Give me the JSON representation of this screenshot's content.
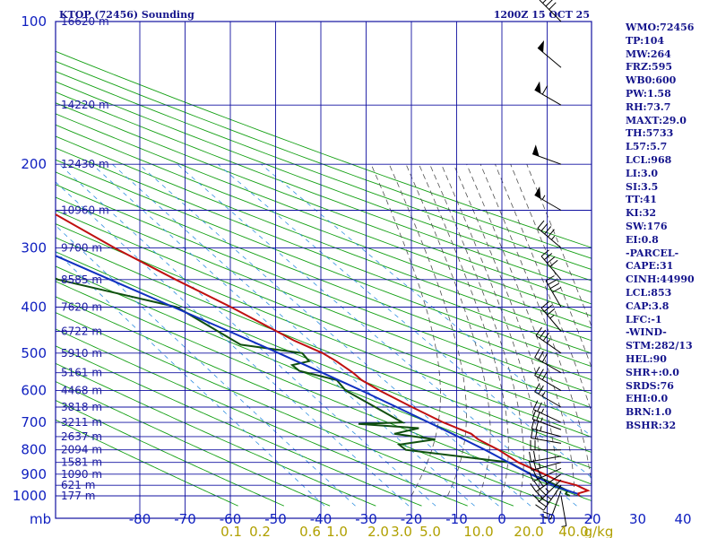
{
  "title_left": "KTOP (72456) Sounding",
  "title_right": "1200Z 15 OCT 25",
  "colors": {
    "grid": "#1010a0",
    "dry_adiabat": "#14a014",
    "moist_adiabat": "#505050",
    "mixing_ratio": "#3090e0",
    "temperature": "#c01010",
    "dewpoint": "#105010",
    "parcel": "#1030c0",
    "text": "#14148c",
    "mixing_label": "#b0a000"
  },
  "chart_data": {
    "type": "skew-t",
    "title": "KTOP (72456) Sounding",
    "valid_time": "1200Z 15 OCT 25",
    "ylabel": "mb",
    "xlabel": "Temperature (°C)",
    "pressure_ticks": [
      100,
      200,
      300,
      400,
      500,
      600,
      700,
      800,
      900,
      1000
    ],
    "pressure_levels": [
      100,
      150,
      200,
      250,
      300,
      350,
      400,
      450,
      500,
      550,
      600,
      650,
      700,
      750,
      800,
      850,
      900,
      950,
      1000
    ],
    "temperature_ticks": [
      -80,
      -70,
      -60,
      -50,
      -40,
      -30,
      -20,
      -10,
      0,
      10,
      20,
      30,
      40
    ],
    "plim_mb": [
      100,
      1050
    ],
    "xlim_c": [
      -82,
      46
    ],
    "height_labels": [
      {
        "p": 100,
        "label": "16620 m"
      },
      {
        "p": 150,
        "label": "14220 m"
      },
      {
        "p": 200,
        "label": "12430 m"
      },
      {
        "p": 250,
        "label": "10960 m"
      },
      {
        "p": 300,
        "label": "9700 m"
      },
      {
        "p": 350,
        "label": "8585 m"
      },
      {
        "p": 400,
        "label": "7620 m"
      },
      {
        "p": 450,
        "label": "6722 m"
      },
      {
        "p": 500,
        "label": "5910 m"
      },
      {
        "p": 550,
        "label": "5161 m"
      },
      {
        "p": 600,
        "label": "4468 m"
      },
      {
        "p": 650,
        "label": "3818 m"
      },
      {
        "p": 700,
        "label": "3211 m"
      },
      {
        "p": 750,
        "label": "2637 m"
      },
      {
        "p": 800,
        "label": "2094 m"
      },
      {
        "p": 850,
        "label": "1581 m"
      },
      {
        "p": 900,
        "label": "1090 m"
      },
      {
        "p": 950,
        "label": "621 m"
      },
      {
        "p": 1000,
        "label": "177 m"
      }
    ],
    "mixing_ratio_labels": [
      "0.1",
      "0.2",
      "0.6",
      "1.0",
      "2.0",
      "3.0",
      "5.0",
      "10.0",
      "20.0",
      "40.0"
    ],
    "mixing_ratio_unit": "g/kg",
    "mixing_ratio_values": [
      0.1,
      0.2,
      0.6,
      1.0,
      2.0,
      3.0,
      5.0,
      10.0,
      20.0,
      40.0
    ],
    "dry_adiabats_k": [
      210,
      220,
      230,
      240,
      250,
      260,
      270,
      280,
      290,
      300,
      310,
      320,
      330,
      340,
      350,
      360,
      370,
      380,
      390,
      400,
      410,
      420,
      430,
      440,
      450,
      460,
      470,
      480
    ],
    "moist_adiabats_c": [
      -20,
      -12,
      -5,
      0,
      4,
      8,
      12,
      16,
      20,
      24,
      28,
      32
    ],
    "series": [
      {
        "name": "Temperature",
        "points": [
          [
            1000,
            17.2
          ],
          [
            990,
            17.0
          ],
          [
            975,
            20.0
          ],
          [
            950,
            18.5
          ],
          [
            925,
            15.0
          ],
          [
            900,
            13.5
          ],
          [
            850,
            10.0
          ],
          [
            800,
            8.0
          ],
          [
            760,
            5.5
          ],
          [
            740,
            5.0
          ],
          [
            700,
            1.0
          ],
          [
            650,
            -3.0
          ],
          [
            600,
            -7.0
          ],
          [
            570,
            -9.0
          ],
          [
            550,
            -9.5
          ],
          [
            520,
            -11.0
          ],
          [
            500,
            -12.5
          ],
          [
            470,
            -16.5
          ],
          [
            450,
            -18.5
          ],
          [
            400,
            -24.0
          ],
          [
            350,
            -31.0
          ],
          [
            300,
            -38.5
          ],
          [
            250,
            -46.0
          ],
          [
            200,
            -53.0
          ],
          [
            170,
            -56.0
          ],
          [
            150,
            -57.5
          ],
          [
            100,
            -67.0
          ]
        ]
      },
      {
        "name": "Dewpoint",
        "points": [
          [
            1000,
            15.0
          ],
          [
            990,
            14.5
          ],
          [
            975,
            15.5
          ],
          [
            950,
            14.0
          ],
          [
            925,
            12.5
          ],
          [
            900,
            10.5
          ],
          [
            850,
            8.0
          ],
          [
            800,
            -12.5
          ],
          [
            780,
            -13.0
          ],
          [
            760,
            -4.0
          ],
          [
            740,
            -12.0
          ],
          [
            720,
            -5.5
          ],
          [
            705,
            -18.0
          ],
          [
            700,
            -8.0
          ],
          [
            660,
            -10.5
          ],
          [
            600,
            -14.5
          ],
          [
            570,
            -14.5
          ],
          [
            545,
            -21.0
          ],
          [
            530,
            -21.5
          ],
          [
            520,
            -17.0
          ],
          [
            500,
            -17.0
          ],
          [
            480,
            -29.0
          ],
          [
            400,
            -36.0
          ],
          [
            350,
            -57.0
          ],
          [
            300,
            -67.0
          ],
          [
            250,
            -74.0
          ],
          [
            200,
            -80.0
          ],
          [
            170,
            -81.0
          ],
          [
            150,
            -82.0
          ],
          [
            130,
            -82.0
          ]
        ]
      },
      {
        "name": "Parcel",
        "points": [
          [
            990,
            17.1
          ],
          [
            960,
            14.0
          ],
          [
            900,
            10.5
          ],
          [
            853,
            8.0
          ],
          [
            800,
            5.0
          ],
          [
            750,
            1.6
          ],
          [
            700,
            -2.2
          ],
          [
            650,
            -6.4
          ],
          [
            600,
            -11.0
          ],
          [
            550,
            -16.3
          ],
          [
            500,
            -22.2
          ],
          [
            450,
            -29.0
          ],
          [
            400,
            -36.7
          ],
          [
            350,
            -45.5
          ],
          [
            300,
            -55.5
          ],
          [
            250,
            -67.0
          ],
          [
            200,
            -80.0
          ]
        ]
      }
    ],
    "wind_barbs": [
      {
        "p": 1000,
        "dir": 170,
        "spd_kt": 5
      },
      {
        "p": 975,
        "dir": 200,
        "spd_kt": 20
      },
      {
        "p": 950,
        "dir": 215,
        "spd_kt": 35
      },
      {
        "p": 925,
        "dir": 225,
        "spd_kt": 35
      },
      {
        "p": 900,
        "dir": 235,
        "spd_kt": 35
      },
      {
        "p": 875,
        "dir": 245,
        "spd_kt": 30
      },
      {
        "p": 850,
        "dir": 255,
        "spd_kt": 25
      },
      {
        "p": 825,
        "dir": 260,
        "spd_kt": 20
      },
      {
        "p": 800,
        "dir": 270,
        "spd_kt": 20
      },
      {
        "p": 775,
        "dir": 280,
        "spd_kt": 20
      },
      {
        "p": 750,
        "dir": 285,
        "spd_kt": 25
      },
      {
        "p": 725,
        "dir": 290,
        "spd_kt": 25
      },
      {
        "p": 700,
        "dir": 295,
        "spd_kt": 25
      },
      {
        "p": 650,
        "dir": 300,
        "spd_kt": 25
      },
      {
        "p": 600,
        "dir": 300,
        "spd_kt": 30
      },
      {
        "p": 550,
        "dir": 300,
        "spd_kt": 30
      },
      {
        "p": 500,
        "dir": 305,
        "spd_kt": 35
      },
      {
        "p": 450,
        "dir": 320,
        "spd_kt": 35
      },
      {
        "p": 400,
        "dir": 330,
        "spd_kt": 40
      },
      {
        "p": 350,
        "dir": 320,
        "spd_kt": 40
      },
      {
        "p": 300,
        "dir": 310,
        "spd_kt": 45
      },
      {
        "p": 250,
        "dir": 300,
        "spd_kt": 55
      },
      {
        "p": 200,
        "dir": 290,
        "spd_kt": 50
      },
      {
        "p": 150,
        "dir": 300,
        "spd_kt": 60
      },
      {
        "p": 125,
        "dir": 310,
        "spd_kt": 50
      },
      {
        "p": 100,
        "dir": 315,
        "spd_kt": 40
      }
    ]
  },
  "indices": [
    "WMO:72456",
    "TP:104",
    "MW:264",
    "FRZ:595",
    "WB0:600",
    "PW:1.58",
    "RH:73.7",
    "MAXT:29.0",
    "TH:5733",
    "L57:5.7",
    "LCL:968",
    "LI:3.0",
    "SI:3.5",
    "TT:41",
    "KI:32",
    "SW:176",
    "EI:0.8",
    "-PARCEL-",
    "CAPE:31",
    "CINH:44990",
    "LCL:853",
    "CAP:3.8",
    "LFC:-1",
    "-WIND-",
    "STM:282/13",
    "HEL:90",
    "SHR+:0.0",
    "SRDS:76",
    "EHI:0.0",
    "BRN:1.0",
    "BSHR:32"
  ]
}
